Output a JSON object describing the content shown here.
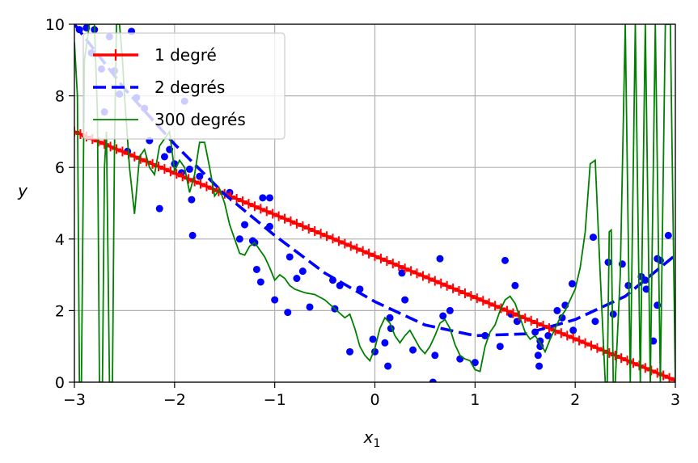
{
  "chart_data": {
    "type": "scatter",
    "xlabel_base": "x",
    "xlabel_sub": "1",
    "ylabel": "y",
    "xlim": [
      -3,
      3
    ],
    "ylim": [
      0,
      10
    ],
    "grid": true,
    "legend_placement": "top-left",
    "x_ticks": [
      -3,
      -2,
      -1,
      0,
      1,
      2,
      3
    ],
    "y_ticks": [
      0,
      2,
      4,
      6,
      8,
      10
    ],
    "x_tick_labels": [
      "−3",
      "−2",
      "−1",
      "0",
      "1",
      "2",
      "3"
    ],
    "y_tick_labels": [
      "0",
      "2",
      "4",
      "6",
      "8",
      "10"
    ],
    "legend": [
      {
        "label": "1 degré",
        "color": "#ff0000",
        "style": "line-plus"
      },
      {
        "label": "2 degrés",
        "color": "#0000ff",
        "style": "dashed"
      },
      {
        "label": "300 degrés",
        "color": "#008000",
        "style": "thin"
      }
    ],
    "scatter_points": [
      [
        -2.95,
        9.85
      ],
      [
        -2.88,
        9.9
      ],
      [
        -2.83,
        9.2
      ],
      [
        -2.8,
        9.85
      ],
      [
        -2.73,
        8.75
      ],
      [
        -2.7,
        7.55
      ],
      [
        -2.65,
        9.65
      ],
      [
        -2.6,
        8.7
      ],
      [
        -2.55,
        8.05
      ],
      [
        -2.47,
        6.45
      ],
      [
        -2.43,
        9.8
      ],
      [
        -2.38,
        7.95
      ],
      [
        -2.3,
        7.65
      ],
      [
        -2.25,
        6.75
      ],
      [
        -2.15,
        4.85
      ],
      [
        -2.1,
        6.3
      ],
      [
        -2.05,
        6.5
      ],
      [
        -2.0,
        6.1
      ],
      [
        -1.93,
        5.85
      ],
      [
        -1.9,
        7.85
      ],
      [
        -1.85,
        5.95
      ],
      [
        -1.83,
        5.1
      ],
      [
        -1.82,
        4.1
      ],
      [
        -1.75,
        5.75
      ],
      [
        -1.45,
        5.3
      ],
      [
        -1.35,
        4.0
      ],
      [
        -1.3,
        4.4
      ],
      [
        -1.22,
        3.95
      ],
      [
        -1.2,
        3.9
      ],
      [
        -1.18,
        3.15
      ],
      [
        -1.14,
        2.8
      ],
      [
        -1.12,
        5.15
      ],
      [
        -1.05,
        5.15
      ],
      [
        -1.05,
        4.35
      ],
      [
        -1.0,
        2.3
      ],
      [
        -0.87,
        1.95
      ],
      [
        -0.85,
        3.5
      ],
      [
        -0.78,
        2.9
      ],
      [
        -0.72,
        3.1
      ],
      [
        -0.65,
        2.1
      ],
      [
        -0.42,
        2.85
      ],
      [
        -0.4,
        2.05
      ],
      [
        -0.35,
        2.7
      ],
      [
        -0.25,
        0.85
      ],
      [
        -0.15,
        2.6
      ],
      [
        -0.02,
        1.2
      ],
      [
        0.0,
        0.85
      ],
      [
        0.1,
        1.1
      ],
      [
        0.13,
        0.45
      ],
      [
        0.15,
        1.8
      ],
      [
        0.16,
        1.5
      ],
      [
        0.27,
        3.05
      ],
      [
        0.3,
        2.3
      ],
      [
        0.38,
        0.9
      ],
      [
        0.58,
        0.0
      ],
      [
        0.6,
        0.75
      ],
      [
        0.65,
        3.45
      ],
      [
        0.68,
        1.85
      ],
      [
        0.75,
        2.0
      ],
      [
        0.85,
        0.65
      ],
      [
        1.0,
        0.55
      ],
      [
        1.1,
        1.3
      ],
      [
        1.25,
        1.0
      ],
      [
        1.3,
        3.4
      ],
      [
        1.36,
        1.9
      ],
      [
        1.4,
        2.7
      ],
      [
        1.42,
        1.7
      ],
      [
        1.6,
        1.4
      ],
      [
        1.63,
        0.75
      ],
      [
        1.65,
        1.0
      ],
      [
        1.64,
        0.45
      ],
      [
        1.65,
        1.15
      ],
      [
        1.73,
        1.3
      ],
      [
        1.82,
        2.0
      ],
      [
        1.87,
        1.8
      ],
      [
        1.9,
        2.15
      ],
      [
        1.97,
        2.75
      ],
      [
        1.98,
        1.45
      ],
      [
        2.18,
        4.05
      ],
      [
        2.2,
        1.7
      ],
      [
        2.33,
        3.35
      ],
      [
        2.38,
        1.9
      ],
      [
        2.47,
        3.3
      ],
      [
        2.53,
        2.7
      ],
      [
        2.66,
        2.95
      ],
      [
        2.7,
        2.85
      ],
      [
        2.71,
        2.6
      ],
      [
        2.78,
        1.15
      ],
      [
        2.82,
        2.15
      ],
      [
        2.82,
        3.45
      ],
      [
        2.85,
        3.4
      ],
      [
        2.93,
        4.1
      ]
    ],
    "series": [
      {
        "name": "1 degré",
        "type": "line-plus",
        "x": [
          -3,
          3
        ],
        "y": [
          7.0,
          0.05
        ]
      },
      {
        "name": "2 degrés",
        "type": "dashed",
        "x": [
          -3.0,
          -2.5,
          -2.0,
          -1.5,
          -1.0,
          -0.5,
          0.0,
          0.5,
          1.0,
          1.5,
          2.0,
          2.5,
          3.0
        ],
        "y": [
          10.0,
          8.2,
          6.65,
          5.25,
          4.1,
          3.05,
          2.25,
          1.6,
          1.3,
          1.35,
          1.75,
          2.4,
          3.55
        ]
      },
      {
        "name": "300 degrés",
        "type": "thin",
        "x": [
          -3.0,
          -2.97,
          -2.95,
          -2.93,
          -2.9,
          -2.85,
          -2.8,
          -2.77,
          -2.75,
          -2.72,
          -2.7,
          -2.68,
          -2.65,
          -2.62,
          -2.6,
          -2.58,
          -2.55,
          -2.52,
          -2.5,
          -2.45,
          -2.4,
          -2.35,
          -2.3,
          -2.25,
          -2.2,
          -2.15,
          -2.1,
          -2.05,
          -2.0,
          -1.95,
          -1.9,
          -1.85,
          -1.8,
          -1.75,
          -1.7,
          -1.65,
          -1.6,
          -1.55,
          -1.5,
          -1.45,
          -1.4,
          -1.35,
          -1.3,
          -1.25,
          -1.2,
          -1.15,
          -1.1,
          -1.05,
          -1.0,
          -0.95,
          -0.9,
          -0.85,
          -0.8,
          -0.75,
          -0.7,
          -0.6,
          -0.5,
          -0.4,
          -0.3,
          -0.25,
          -0.2,
          -0.15,
          -0.1,
          -0.05,
          0.0,
          0.05,
          0.1,
          0.15,
          0.2,
          0.25,
          0.3,
          0.35,
          0.4,
          0.45,
          0.5,
          0.55,
          0.6,
          0.65,
          0.7,
          0.75,
          0.8,
          0.85,
          0.9,
          0.95,
          1.0,
          1.05,
          1.1,
          1.15,
          1.2,
          1.25,
          1.3,
          1.35,
          1.4,
          1.45,
          1.5,
          1.55,
          1.6,
          1.65,
          1.7,
          1.75,
          1.8,
          1.85,
          1.9,
          1.95,
          2.0,
          2.05,
          2.1,
          2.15,
          2.2,
          2.25,
          2.3,
          2.32,
          2.34,
          2.36,
          2.38,
          2.4,
          2.45,
          2.5,
          2.55,
          2.6,
          2.65,
          2.7,
          2.75,
          2.8,
          2.85,
          2.9,
          2.95,
          3.0
        ],
        "y": [
          9.5,
          8.0,
          0.0,
          0.0,
          9.0,
          10.0,
          10.0,
          7.5,
          0.0,
          0.0,
          6.0,
          7.0,
          0.0,
          0.0,
          6.5,
          10.0,
          10.0,
          9.0,
          8.0,
          6.0,
          4.7,
          6.3,
          6.5,
          6.0,
          5.8,
          6.6,
          6.8,
          7.0,
          5.9,
          6.2,
          6.0,
          5.3,
          5.8,
          6.7,
          6.7,
          6.0,
          5.2,
          5.4,
          5.0,
          4.4,
          4.0,
          3.6,
          3.55,
          3.8,
          3.9,
          3.7,
          3.5,
          3.2,
          2.85,
          3.0,
          2.9,
          2.7,
          2.6,
          2.55,
          2.5,
          2.45,
          2.3,
          2.05,
          1.8,
          1.9,
          1.5,
          1.0,
          0.75,
          0.6,
          0.95,
          1.5,
          1.8,
          1.65,
          1.3,
          1.1,
          1.3,
          1.45,
          1.2,
          0.95,
          0.8,
          1.0,
          1.3,
          1.65,
          1.75,
          1.5,
          1.05,
          0.75,
          0.65,
          0.6,
          0.35,
          0.3,
          1.0,
          1.4,
          1.6,
          2.0,
          2.3,
          2.4,
          2.2,
          1.8,
          1.4,
          1.2,
          1.3,
          1.1,
          0.85,
          1.2,
          1.5,
          1.8,
          2.0,
          2.3,
          2.6,
          3.2,
          4.2,
          6.1,
          6.2,
          3.0,
          0.0,
          0.0,
          4.2,
          4.25,
          0.0,
          0.0,
          3.0,
          10.0,
          0.0,
          10.0,
          0.0,
          10.0,
          0.0,
          10.0,
          0.0,
          10.0,
          10.0,
          0.0
        ]
      }
    ]
  }
}
